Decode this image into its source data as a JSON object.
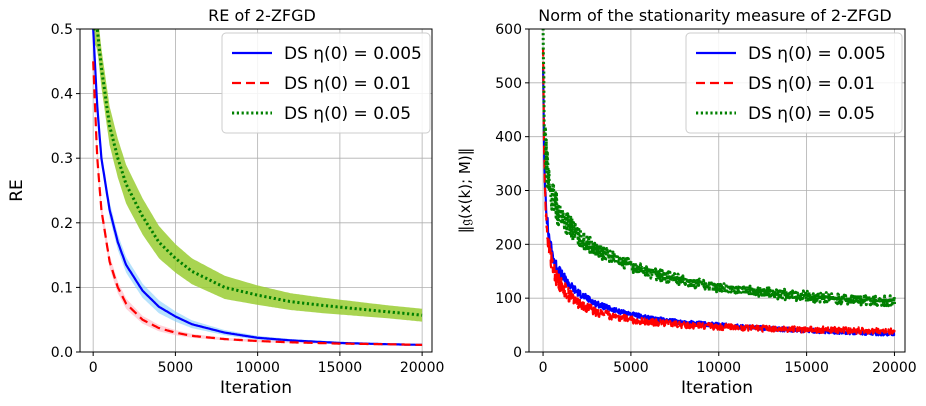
{
  "chart_data": [
    {
      "type": "line",
      "title": "RE of 2-ZFGD",
      "xlabel": "Iteration",
      "ylabel": "RE",
      "xlim": [
        -800,
        20600
      ],
      "ylim": [
        0,
        0.5
      ],
      "xticks": [
        0,
        5000,
        10000,
        15000,
        20000
      ],
      "yticks": [
        0.0,
        0.1,
        0.2,
        0.3,
        0.4,
        0.5
      ],
      "xtick_labels": [
        "0",
        "5000",
        "10000",
        "15000",
        "20000"
      ],
      "ytick_labels": [
        "0.0",
        "0.1",
        "0.2",
        "0.3",
        "0.4",
        "0.5"
      ],
      "grid": true,
      "legend_position": "top-right",
      "series": [
        {
          "name": "DS η(0) = 0.005",
          "color": "#0000ff",
          "dash": "solid",
          "band_color": "#87cefa",
          "x": [
            0,
            250,
            500,
            1000,
            1500,
            2000,
            3000,
            4000,
            5000,
            6000,
            8000,
            10000,
            12000,
            15000,
            18000,
            20000
          ],
          "y": [
            0.5,
            0.38,
            0.3,
            0.22,
            0.17,
            0.135,
            0.095,
            0.07,
            0.055,
            0.043,
            0.03,
            0.022,
            0.018,
            0.014,
            0.012,
            0.011
          ],
          "band": [
            0.01,
            0.011,
            0.012,
            0.012,
            0.012,
            0.012,
            0.011,
            0.01,
            0.008,
            0.006,
            0.004,
            0.003,
            0.002,
            0.002,
            0.001,
            0.001
          ]
        },
        {
          "name": "DS η(0) = 0.01",
          "color": "#ff0000",
          "dash": "dashed",
          "band_color": "#ffb6c1",
          "x": [
            0,
            250,
            500,
            1000,
            1500,
            2000,
            3000,
            4000,
            5000,
            6000,
            8000,
            10000,
            12000,
            15000,
            18000,
            20000
          ],
          "y": [
            0.45,
            0.3,
            0.22,
            0.14,
            0.1,
            0.075,
            0.05,
            0.037,
            0.03,
            0.025,
            0.02,
            0.017,
            0.015,
            0.013,
            0.012,
            0.011
          ],
          "band": [
            0.01,
            0.012,
            0.012,
            0.01,
            0.009,
            0.008,
            0.006,
            0.005,
            0.004,
            0.003,
            0.002,
            0.002,
            0.001,
            0.001,
            0.001,
            0.001
          ]
        },
        {
          "name": "DS η(0) = 0.05",
          "color": "#008000",
          "dash": "dotted",
          "band_color": "#9acd32",
          "x": [
            0,
            250,
            500,
            1000,
            1500,
            2000,
            3000,
            4000,
            5000,
            6000,
            8000,
            10000,
            12000,
            14000,
            16000,
            18000,
            20000
          ],
          "y": [
            0.5,
            0.5,
            0.44,
            0.35,
            0.3,
            0.26,
            0.21,
            0.17,
            0.145,
            0.125,
            0.1,
            0.088,
            0.078,
            0.072,
            0.067,
            0.062,
            0.057
          ],
          "band": [
            0.02,
            0.03,
            0.03,
            0.03,
            0.03,
            0.03,
            0.028,
            0.025,
            0.022,
            0.02,
            0.018,
            0.015,
            0.013,
            0.012,
            0.011,
            0.01,
            0.01
          ]
        }
      ]
    },
    {
      "type": "line",
      "title": "Norm of the stationarity measure of 2-ZFGD",
      "xlabel": "Iteration",
      "ylabel": "‖𝔤(x(k); M)‖",
      "xlim": [
        -800,
        20600
      ],
      "ylim": [
        0,
        600
      ],
      "xticks": [
        0,
        5000,
        10000,
        15000,
        20000
      ],
      "yticks": [
        0,
        100,
        200,
        300,
        400,
        500,
        600
      ],
      "xtick_labels": [
        "0",
        "5000",
        "10000",
        "15000",
        "20000"
      ],
      "ytick_labels": [
        "0",
        "100",
        "200",
        "300",
        "400",
        "500",
        "600"
      ],
      "grid": true,
      "legend_position": "top-right",
      "series": [
        {
          "name": "DS η(0) = 0.005",
          "color": "#0000ff",
          "dash": "solid",
          "noise": 4,
          "x": [
            0,
            50,
            100,
            200,
            300,
            500,
            750,
            1000,
            1500,
            2000,
            3000,
            4000,
            5000,
            6000,
            8000,
            10000,
            12000,
            15000,
            18000,
            20000
          ],
          "y": [
            540,
            380,
            320,
            260,
            220,
            185,
            160,
            145,
            125,
            110,
            90,
            78,
            70,
            63,
            55,
            50,
            45,
            40,
            36,
            34
          ]
        },
        {
          "name": "DS η(0) = 0.01",
          "color": "#ff0000",
          "dash": "dashed",
          "noise": 6,
          "x": [
            0,
            50,
            100,
            200,
            300,
            500,
            750,
            1000,
            1500,
            2000,
            3000,
            4000,
            5000,
            6000,
            8000,
            10000,
            12000,
            15000,
            18000,
            20000
          ],
          "y": [
            570,
            390,
            310,
            240,
            200,
            165,
            140,
            125,
            105,
            92,
            75,
            66,
            60,
            56,
            50,
            47,
            44,
            42,
            40,
            38
          ]
        },
        {
          "name": "DS η(0) = 0.05",
          "color": "#008000",
          "dash": "dotted",
          "noise": 10,
          "x": [
            0,
            50,
            100,
            200,
            300,
            500,
            750,
            1000,
            1500,
            2000,
            3000,
            4000,
            5000,
            6000,
            8000,
            10000,
            12000,
            14000,
            16000,
            18000,
            20000
          ],
          "y": [
            590,
            460,
            400,
            350,
            320,
            290,
            270,
            255,
            235,
            215,
            190,
            175,
            160,
            148,
            132,
            120,
            112,
            106,
            101,
            97,
            95
          ]
        }
      ]
    }
  ]
}
